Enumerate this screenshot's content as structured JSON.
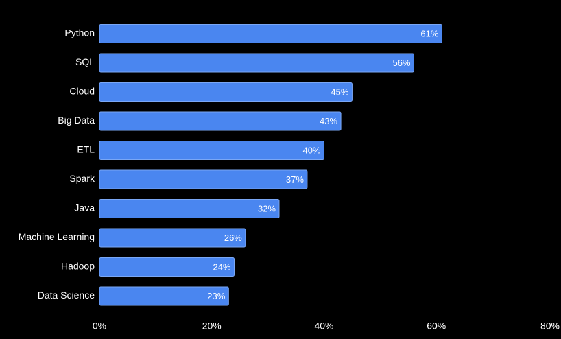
{
  "chart_data": {
    "type": "bar",
    "orientation": "horizontal",
    "categories": [
      "Python",
      "SQL",
      "Cloud",
      "Big Data",
      "ETL",
      "Spark",
      "Java",
      "Machine Learning",
      "Hadoop",
      "Data Science"
    ],
    "values": [
      61,
      56,
      45,
      43,
      40,
      37,
      32,
      26,
      24,
      23
    ],
    "value_labels": [
      "61%",
      "56%",
      "45%",
      "43%",
      "40%",
      "37%",
      "32%",
      "26%",
      "24%",
      "23%"
    ],
    "x_ticks": [
      {
        "value": 0,
        "label": "0%"
      },
      {
        "value": 20,
        "label": "20%"
      },
      {
        "value": 40,
        "label": "40%"
      },
      {
        "value": 60,
        "label": "60%"
      },
      {
        "value": 80,
        "label": "80%"
      }
    ],
    "xlim": [
      0,
      80
    ],
    "grid": false,
    "colors": {
      "background": "#000000",
      "bar": "#4a86f0",
      "bar_outline": "#7aa7f5",
      "text": "#ffffff"
    }
  }
}
